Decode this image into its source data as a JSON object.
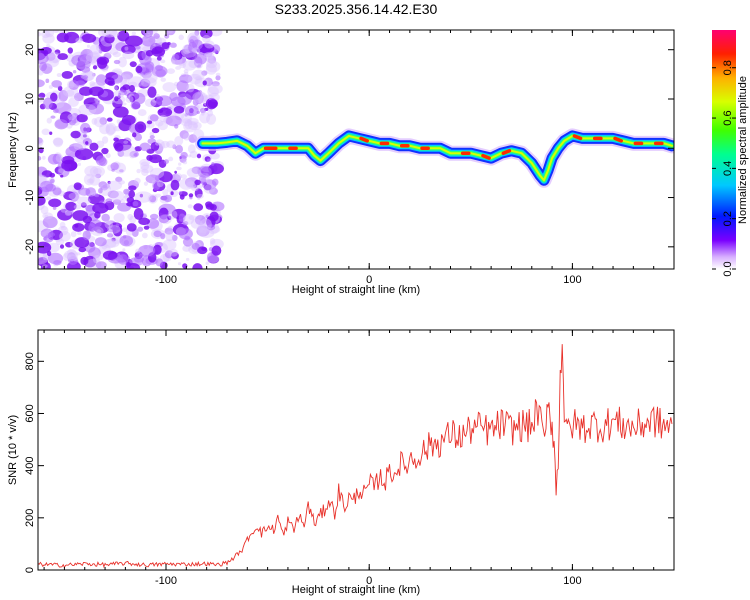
{
  "title": "S233.2025.356.14.42.E30",
  "chart_data": [
    {
      "type": "heatmap",
      "xlabel": "Height of straight line (km)",
      "ylabel": "Frequency (Hz)",
      "xlim": [
        -163,
        150
      ],
      "ylim": [
        -24.5,
        24
      ],
      "x_ticks": [
        -100,
        0,
        100
      ],
      "x_tick_labels": [
        "-100",
        "0",
        "100"
      ],
      "y_ticks": [
        -20,
        -10,
        0,
        10,
        20
      ],
      "y_tick_labels": [
        "-20",
        "-10",
        "0",
        "10",
        "20"
      ],
      "noise_region_x": [
        -163,
        -80
      ],
      "ridge": {
        "x": [
          -82,
          -75,
          -70,
          -65,
          -60,
          -56,
          -52,
          -45,
          -40,
          -35,
          -30,
          -27,
          -24,
          -20,
          -15,
          -10,
          -5,
          0,
          5,
          10,
          15,
          20,
          25,
          30,
          35,
          40,
          45,
          50,
          55,
          60,
          65,
          70,
          75,
          80,
          84,
          86,
          88,
          90,
          93,
          96,
          100,
          105,
          110,
          115,
          120,
          125,
          130,
          135,
          140,
          145,
          149
        ],
        "y": [
          1,
          1,
          1.2,
          1.5,
          0.5,
          -1,
          0,
          0,
          0,
          0,
          0,
          -1.5,
          -2.5,
          -1,
          1,
          2.5,
          2,
          1.5,
          1,
          1,
          0.5,
          0.5,
          0,
          0,
          0,
          -1,
          -1,
          -1,
          -1.5,
          -2,
          -1,
          -0.5,
          -1,
          -3,
          -5.5,
          -6.5,
          -4.5,
          -2,
          0,
          1.5,
          2.5,
          2,
          2,
          2,
          2,
          1.5,
          1,
          1,
          1,
          1,
          0.5
        ]
      },
      "colorbar": {
        "label": "Normalized spectral amplitude",
        "range": [
          0,
          0.95
        ],
        "ticks": [
          0.0,
          0.2,
          0.4,
          0.6,
          0.8
        ],
        "tick_labels": [
          "0.0",
          "0.2",
          "0.4",
          "0.6",
          "0.8"
        ]
      }
    },
    {
      "type": "line",
      "xlabel": "Height of straight line (km)",
      "ylabel": "SNR (10 * v/v)",
      "xlim": [
        -163,
        150
      ],
      "ylim": [
        0,
        920
      ],
      "x_ticks": [
        -100,
        0,
        100
      ],
      "x_tick_labels": [
        "-100",
        "0",
        "100"
      ],
      "y_ticks": [
        0,
        200,
        400,
        600,
        800
      ],
      "y_tick_labels": [
        "0",
        "200",
        "400",
        "600",
        "800"
      ],
      "series": [
        {
          "color": "#e8312a",
          "x": [
            -163,
            -150,
            -140,
            -130,
            -120,
            -110,
            -100,
            -90,
            -80,
            -75,
            -70,
            -67,
            -65,
            -62,
            -60,
            -57,
            -55,
            -53,
            -50,
            -47,
            -45,
            -42,
            -40,
            -37,
            -35,
            -32,
            -30,
            -27,
            -25,
            -22,
            -20,
            -17,
            -15,
            -12,
            -10,
            -8,
            -5,
            -2,
            0,
            3,
            5,
            8,
            10,
            13,
            15,
            18,
            20,
            23,
            25,
            28,
            30,
            35,
            40,
            45,
            50,
            55,
            60,
            65,
            70,
            75,
            80,
            83,
            85,
            87,
            88,
            89,
            90,
            91,
            92,
            93,
            94,
            95,
            96,
            97,
            98,
            100,
            105,
            110,
            115,
            120,
            125,
            130,
            135,
            140,
            145,
            149
          ],
          "y": [
            22,
            18,
            24,
            20,
            26,
            19,
            23,
            22,
            24,
            20,
            28,
            45,
            60,
            80,
            120,
            150,
            175,
            140,
            165,
            155,
            200,
            130,
            190,
            150,
            210,
            170,
            250,
            180,
            200,
            230,
            270,
            220,
            300,
            240,
            280,
            260,
            310,
            290,
            330,
            320,
            360,
            340,
            380,
            370,
            410,
            395,
            430,
            420,
            450,
            460,
            480,
            490,
            520,
            510,
            540,
            545,
            530,
            560,
            540,
            555,
            550,
            620,
            530,
            500,
            700,
            580,
            560,
            490,
            300,
            420,
            760,
            900,
            600,
            520,
            540,
            560,
            545,
            560,
            550,
            570,
            555,
            545,
            560,
            575,
            550,
            560
          ]
        }
      ]
    }
  ]
}
